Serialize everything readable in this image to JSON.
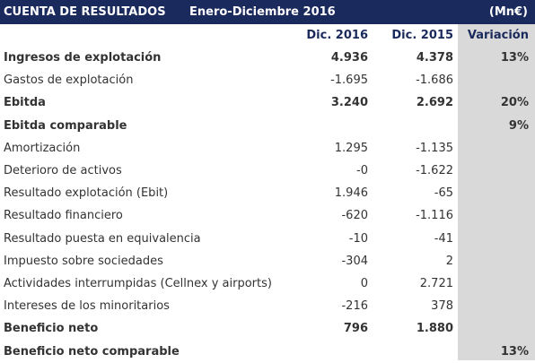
{
  "header": {
    "title": "CUENTA DE RESULTADOS",
    "period": "Enero-Diciembre 2016",
    "unit": "(Mn€)"
  },
  "columns": [
    "Dic. 2016",
    "Dic. 2015",
    "Variación"
  ],
  "rows": [
    {
      "label": "Ingresos de explotación",
      "v2016": "4.936",
      "v2015": "4.378",
      "variation": "13%",
      "bold": true
    },
    {
      "label": "Gastos de explotación",
      "v2016": "-1.695",
      "v2015": "-1.686",
      "variation": "",
      "bold": false
    },
    {
      "label": "Ebitda",
      "v2016": "3.240",
      "v2015": "2.692",
      "variation": "20%",
      "bold": true
    },
    {
      "label": "Ebitda comparable",
      "v2016": "",
      "v2015": "",
      "variation": "9%",
      "bold": true
    },
    {
      "label": "Amortización",
      "v2016": "1.295",
      "v2015": "-1.135",
      "variation": "",
      "bold": false
    },
    {
      "label": "Deterioro de activos",
      "v2016": "-0",
      "v2015": "-1.622",
      "variation": "",
      "bold": false
    },
    {
      "label": "Resultado explotación (Ebit)",
      "v2016": "1.946",
      "v2015": "-65",
      "variation": "",
      "bold": false
    },
    {
      "label": "Resultado financiero",
      "v2016": "-620",
      "v2015": "-1.116",
      "variation": "",
      "bold": false
    },
    {
      "label": "Resultado puesta en equivalencia",
      "v2016": "-10",
      "v2015": "-41",
      "variation": "",
      "bold": false
    },
    {
      "label": "Impuesto sobre sociedades",
      "v2016": "-304",
      "v2015": "2",
      "variation": "",
      "bold": false
    },
    {
      "label": "Actividades interrumpidas (Cellnex y airports)",
      "v2016": "0",
      "v2015": "2.721",
      "variation": "",
      "bold": false
    },
    {
      "label": "Intereses de los minoritarios",
      "v2016": "-216",
      "v2015": "378",
      "variation": "",
      "bold": false
    },
    {
      "label": "Beneficio neto",
      "v2016": "796",
      "v2015": "1.880",
      "variation": "",
      "bold": true
    },
    {
      "label": "Beneficio neto comparable",
      "v2016": "",
      "v2015": "",
      "variation": "13%",
      "bold": true
    }
  ]
}
